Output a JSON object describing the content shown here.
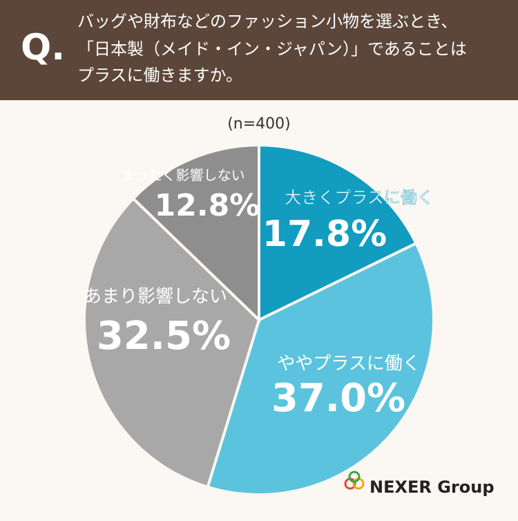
{
  "header": {
    "mark": "Q.",
    "lines": [
      "バッグや財布などのファッション小物を選ぶとき、",
      "「日本製（メイド・イン・ジャパン）」であることは",
      "プラスに働きますか。"
    ]
  },
  "chart_data": {
    "type": "pie",
    "subtitle": "(n=400)",
    "categories": [
      "大きくプラスに働く",
      "ややプラスに働く",
      "あまり影響しない",
      "まったく影響しない"
    ],
    "values": [
      17.8,
      37.0,
      32.5,
      12.8
    ],
    "value_labels": [
      "17.8%",
      "37.0%",
      "32.5%",
      "12.8%"
    ],
    "colors": [
      "#119cc0",
      "#5bc3dd",
      "#a8a8a8",
      "#8e8e8e"
    ]
  },
  "logo": "NEXER Group"
}
